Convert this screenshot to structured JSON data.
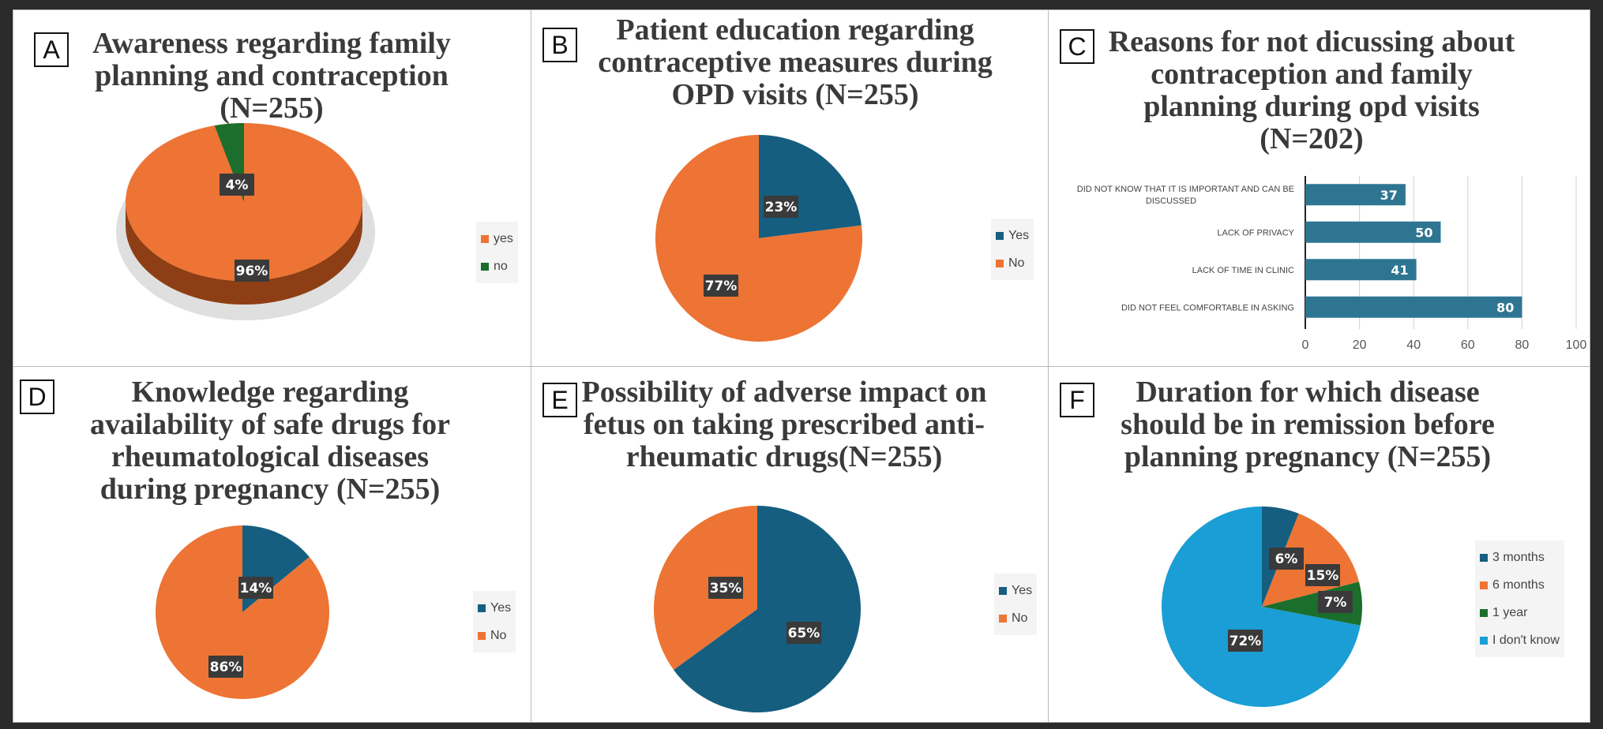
{
  "colors": {
    "orange": "#ED7434",
    "navy": "#155E80",
    "green": "#1B6E2B",
    "sky": "#1A9ED5",
    "bar": "#2E7592",
    "label_bg": "#3A3A3A"
  },
  "panels": [
    {
      "id": "A",
      "letter": "A",
      "title": "Awareness regarding family planning and contraception (N=255)",
      "chart_data": {
        "type": "pie",
        "style": "3d",
        "slices": [
          {
            "label": "yes",
            "value": 96,
            "display": "96%",
            "color": "#ED7434"
          },
          {
            "label": "no",
            "value": 4,
            "display": "4%",
            "color": "#1B6E2B"
          }
        ],
        "legend": "right"
      }
    },
    {
      "id": "B",
      "letter": "B",
      "title": "Patient education regarding contraceptive measures during OPD visits (N=255)",
      "chart_data": {
        "type": "pie",
        "slices": [
          {
            "label": "Yes",
            "value": 23,
            "display": "23%",
            "color": "#155E80"
          },
          {
            "label": "No",
            "value": 77,
            "display": "77%",
            "color": "#ED7434"
          }
        ],
        "legend": "right"
      }
    },
    {
      "id": "C",
      "letter": "C",
      "title": "Reasons for not dicussing about contraception and family planning during opd visits (N=202)",
      "chart_data": {
        "type": "bar",
        "orientation": "horizontal",
        "categories": [
          "DID NOT KNOW THAT IT IS IMPORTANT AND CAN BE DISCUSSED",
          "LACK OF PRIVACY",
          "LACK OF TIME IN CLINIC",
          "DID NOT FEEL COMFORTABLE IN ASKING"
        ],
        "values": [
          37,
          50,
          41,
          80
        ],
        "xlim": [
          0,
          100
        ],
        "xticks": [
          0,
          20,
          40,
          60,
          80,
          100
        ],
        "grid": true,
        "color": "#2E7592"
      }
    },
    {
      "id": "D",
      "letter": "D",
      "title": "Knowledge regarding availability of safe drugs for rheumatological diseases during pregnancy (N=255)",
      "chart_data": {
        "type": "pie",
        "slices": [
          {
            "label": "Yes",
            "value": 14,
            "display": "14%",
            "color": "#155E80"
          },
          {
            "label": "No",
            "value": 86,
            "display": "86%",
            "color": "#ED7434"
          }
        ],
        "legend": "right"
      }
    },
    {
      "id": "E",
      "letter": "E",
      "title": "Possibility of adverse impact on fetus on taking prescribed anti-rheumatic drugs(N=255)",
      "chart_data": {
        "type": "pie",
        "slices": [
          {
            "label": "Yes",
            "value": 65,
            "display": "65%",
            "color": "#155E80"
          },
          {
            "label": "No",
            "value": 35,
            "display": "35%",
            "color": "#ED7434"
          }
        ],
        "legend": "right"
      }
    },
    {
      "id": "F",
      "letter": "F",
      "title": "Duration for which disease should be in remission before planning pregnancy (N=255)",
      "chart_data": {
        "type": "pie",
        "slices": [
          {
            "label": "3 months",
            "value": 6,
            "display": "6%",
            "color": "#155E80"
          },
          {
            "label": "6 months",
            "value": 15,
            "display": "15%",
            "color": "#ED7434"
          },
          {
            "label": "1 year",
            "value": 7,
            "display": "7%",
            "color": "#1B6E2B"
          },
          {
            "label": "I don't know",
            "value": 72,
            "display": "72%",
            "color": "#1A9ED5"
          }
        ],
        "legend": "right"
      }
    }
  ]
}
